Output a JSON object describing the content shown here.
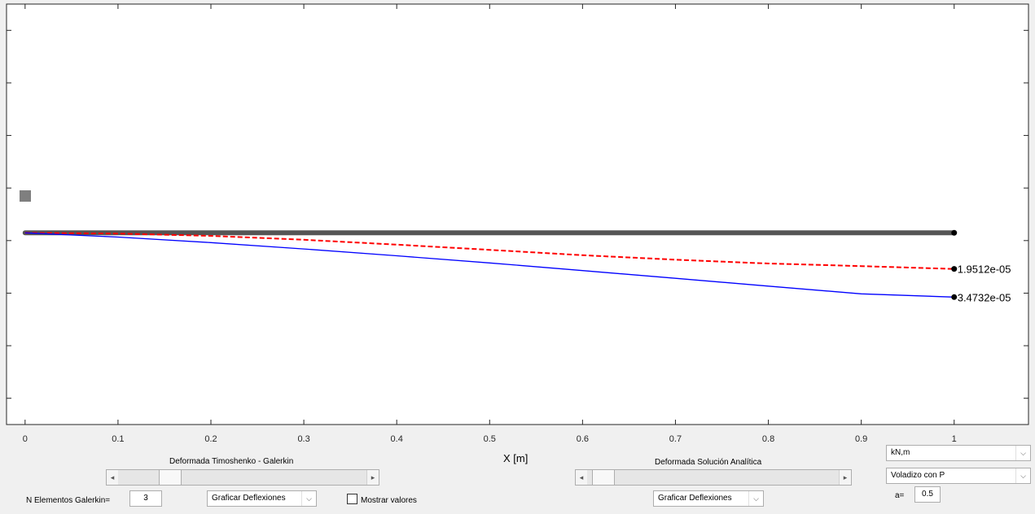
{
  "chart_data": {
    "type": "line",
    "xlabel": "X [m]",
    "xlim": [
      -0.02,
      1.08
    ],
    "ylim": [
      -0.0001036,
      0.0001236
    ],
    "x_ticks": [
      "0",
      "0.1",
      "0.2",
      "0.3",
      "0.4",
      "0.5",
      "0.6",
      "0.7",
      "0.8",
      "0.9",
      "1"
    ],
    "grid": false,
    "series": [
      {
        "style": "beam",
        "color": "#555555",
        "x": [
          0,
          1
        ],
        "y": [
          0,
          0
        ]
      },
      {
        "style": "dashed",
        "color": "#ff0000",
        "x": [
          0,
          0.1,
          0.2,
          0.3,
          0.4,
          0.5,
          0.6,
          0.7,
          0.8,
          0.9,
          1.0
        ],
        "y": [
          0,
          -4.2e-07,
          -1.66e-06,
          -3.77e-06,
          -6.4e-06,
          -9.21e-06,
          -1.21e-05,
          -1.45e-05,
          -1.66e-05,
          -1.8e-05,
          -1.9512e-05
        ]
      },
      {
        "style": "solid",
        "color": "#0000ff",
        "x": [
          0,
          0.1,
          0.2,
          0.3,
          0.4,
          0.5,
          0.6,
          0.7,
          0.8,
          0.9,
          1.0
        ],
        "y": [
          0,
          -2.3e-06,
          -5.3e-06,
          -8.7e-06,
          -1.24e-05,
          -1.63e-05,
          -2.04e-05,
          -2.46e-05,
          -2.88e-05,
          -3.3e-05,
          -3.4732e-05
        ]
      }
    ],
    "annotations": [
      {
        "x": 1,
        "y": -1.9512e-05,
        "text": "1.9512e-05"
      },
      {
        "x": 1,
        "y": -3.4732e-05,
        "text": "3.4732e-05"
      }
    ]
  },
  "controls": {
    "timoshenko_title": "Deformada Timoshenko - Galerkin",
    "timoshenko_slider_value": 0.18,
    "analitica_title": "Deformada Solución Analítica",
    "analitica_slider_value": 0.02,
    "n_elementos_label": "N Elementos Galerkin=",
    "n_elementos_value": "3",
    "graficar_left": "Graficar Deflexiones",
    "mostrar_valores_label": "Mostrar valores",
    "mostrar_valores_checked": false,
    "graficar_right": "Graficar Deflexiones",
    "units_select": "kN,m",
    "case_select": "Voladizo con P",
    "a_label": "a=",
    "a_value": "0.5"
  }
}
